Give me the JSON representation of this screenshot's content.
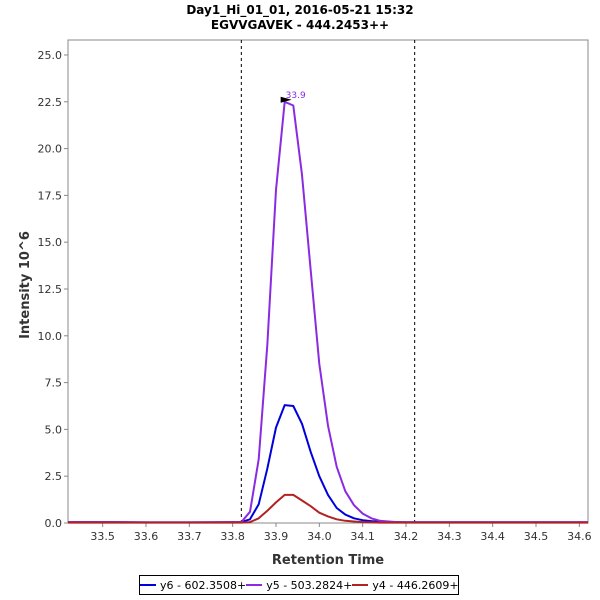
{
  "chart_data": {
    "type": "line",
    "title": "Day1_Hi_01_01, 2016-05-21 15:32",
    "subtitle": "EGVVGAVEK - 444.2453++",
    "xlabel": "Retention Time",
    "ylabel": "Intensity 10^6",
    "xlim": [
      33.42,
      34.62
    ],
    "ylim": [
      0,
      25.8
    ],
    "xticks": [
      "33.5",
      "33.6",
      "33.7",
      "33.8",
      "33.9",
      "34.0",
      "34.1",
      "34.2",
      "34.3",
      "34.4",
      "34.5",
      "34.6"
    ],
    "yticks": [
      "0.0",
      "2.5",
      "5.0",
      "7.5",
      "10.0",
      "12.5",
      "15.0",
      "17.5",
      "20.0",
      "22.5",
      "25.0"
    ],
    "boundaries": [
      33.82,
      34.22
    ],
    "peak_annotation": {
      "text": "33.9",
      "x": 33.95,
      "y": 22.5
    },
    "grid": false,
    "legend_position": "bottom",
    "x": [
      33.42,
      33.48,
      33.52,
      33.6,
      33.7,
      33.77,
      33.8,
      33.82,
      33.84,
      33.86,
      33.88,
      33.9,
      33.92,
      33.94,
      33.96,
      33.98,
      34.0,
      34.02,
      34.04,
      34.06,
      34.08,
      34.1,
      34.12,
      34.14,
      34.16,
      34.18,
      34.2,
      34.22,
      34.3,
      34.4,
      34.5,
      34.62
    ],
    "series": [
      {
        "name": "y6 - 602.3508+",
        "color": "#0000dd",
        "values": [
          0.05,
          0.05,
          0.05,
          0.03,
          0.03,
          0.04,
          0.05,
          0.05,
          0.2,
          1.0,
          2.9,
          5.1,
          6.3,
          6.25,
          5.3,
          3.8,
          2.5,
          1.5,
          0.8,
          0.45,
          0.25,
          0.15,
          0.1,
          0.07,
          0.05,
          0.05,
          0.04,
          0.04,
          0.04,
          0.04,
          0.04,
          0.04
        ]
      },
      {
        "name": "y5 - 503.2824+",
        "color": "#8a2be2",
        "values": [
          0.05,
          0.05,
          0.05,
          0.03,
          0.03,
          0.04,
          0.05,
          0.05,
          0.6,
          3.4,
          9.5,
          17.8,
          22.5,
          22.3,
          18.6,
          13.5,
          8.5,
          5.2,
          3.0,
          1.7,
          0.95,
          0.5,
          0.25,
          0.12,
          0.08,
          0.05,
          0.04,
          0.04,
          0.04,
          0.04,
          0.04,
          0.04
        ]
      },
      {
        "name": "y4 - 446.2609+",
        "color": "#b22222",
        "values": [
          0.02,
          0.02,
          0.02,
          0.02,
          0.02,
          0.02,
          0.02,
          0.02,
          0.05,
          0.25,
          0.65,
          1.1,
          1.5,
          1.5,
          1.2,
          0.9,
          0.55,
          0.35,
          0.2,
          0.12,
          0.08,
          0.05,
          0.03,
          0.02,
          0.02,
          0.02,
          0.02,
          0.02,
          0.02,
          0.02,
          0.02,
          0.02
        ]
      }
    ]
  }
}
